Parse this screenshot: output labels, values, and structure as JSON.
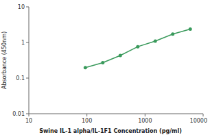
{
  "chart_data": {
    "type": "line",
    "xlabel": "Swine IL-1 alpha/IL-1F1 Concentration (pg/ml)",
    "ylabel": "Absorbance (450nm)",
    "x": [
      93.75,
      187.5,
      375,
      750,
      1500,
      3000,
      6000
    ],
    "values": [
      0.197,
      0.271,
      0.432,
      0.762,
      1.09,
      1.72,
      2.37
    ],
    "color": "#3a9a5c",
    "marker": "circle",
    "xlim": [
      10,
      10000
    ],
    "ylim": [
      0.01,
      10
    ],
    "xticks": [
      10,
      100,
      1000,
      10000
    ],
    "yticks": [
      0.01,
      0.1,
      1,
      10
    ],
    "log": true,
    "grid": false
  }
}
